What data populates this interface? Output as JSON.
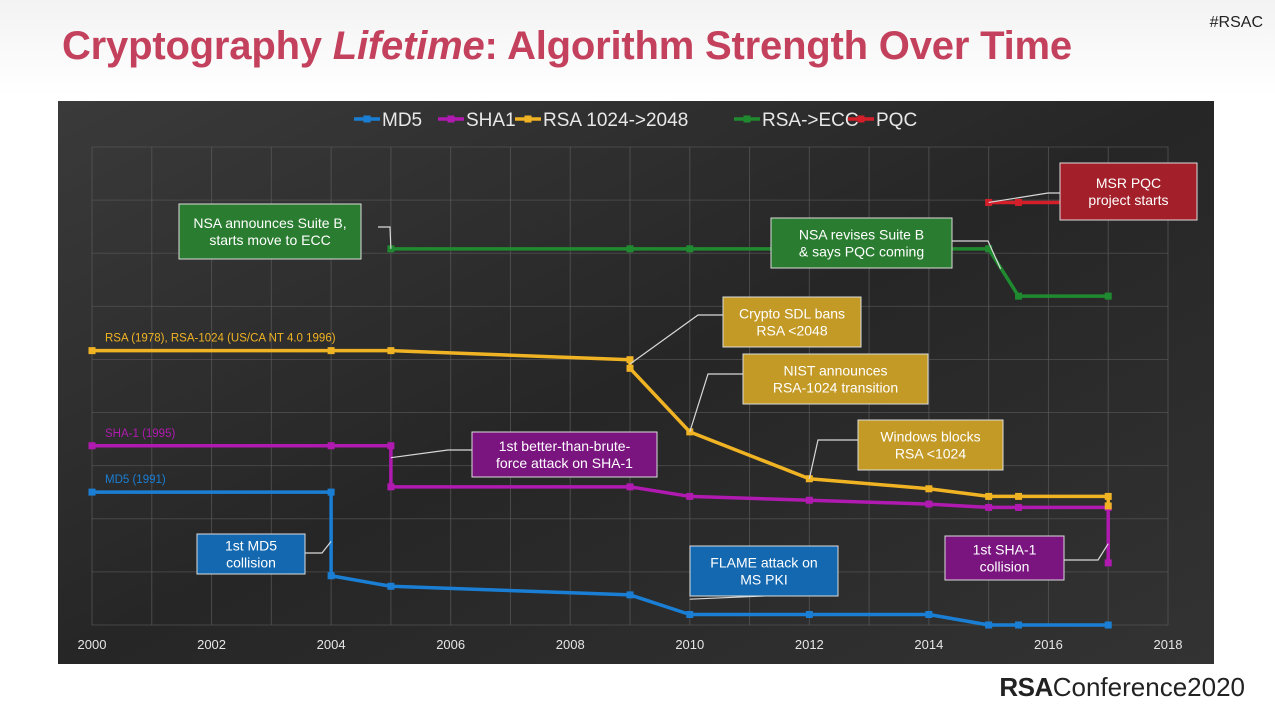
{
  "hashtag": "#RSAC",
  "title": {
    "part1": "Cryptography ",
    "part2": "Lifetime",
    "part3": ": Algorithm Strength Over Time"
  },
  "footer": {
    "brand": "RSA",
    "event": "Conference2020"
  },
  "colors": {
    "title": "#c4415d",
    "md5": "#1a7fd4",
    "sha1": "#b01ab0",
    "rsa": "#f0b323",
    "ecc": "#1f8a2f",
    "pqc": "#d41f2a",
    "box_ecc": "#2a7d30",
    "box_rsa": "#c49a26",
    "box_sha1": "#7a1580",
    "box_md5": "#1468b0",
    "box_pqc": "#a3202a"
  },
  "chart_data": {
    "type": "line",
    "title": "",
    "xlabel": "",
    "ylabel": "",
    "xlim": [
      2000,
      2018
    ],
    "ylim": [
      0,
      100
    ],
    "xticks": [
      "2000",
      "2002",
      "2004",
      "2006",
      "2008",
      "2010",
      "2012",
      "2014",
      "2016",
      "2018"
    ],
    "grid": true,
    "legend_position": "top",
    "series": [
      {
        "name": "MD5",
        "color": "#1a7fd4",
        "points": [
          [
            2000,
            27.8
          ],
          [
            2004,
            27.8
          ],
          [
            2004,
            10.3
          ],
          [
            2005,
            8.1
          ],
          [
            2009,
            6.3
          ],
          [
            2010,
            2.2
          ],
          [
            2012,
            2.2
          ],
          [
            2014,
            2.2
          ],
          [
            2015,
            0
          ],
          [
            2015.5,
            0
          ],
          [
            2017,
            0
          ]
        ]
      },
      {
        "name": "SHA1",
        "color": "#b01ab0",
        "points": [
          [
            2000,
            37.5
          ],
          [
            2004,
            37.5
          ],
          [
            2005,
            37.5
          ],
          [
            2005,
            28.9
          ],
          [
            2009,
            28.9
          ],
          [
            2010,
            26.9
          ],
          [
            2012,
            26.1
          ],
          [
            2014,
            25.3
          ],
          [
            2015,
            24.6
          ],
          [
            2015.5,
            24.6
          ],
          [
            2017,
            24.6
          ],
          [
            2017,
            13.0
          ]
        ]
      },
      {
        "name": "RSA 1024->2048",
        "color": "#f0b323",
        "points": [
          [
            2000,
            57.4
          ],
          [
            2004,
            57.4
          ],
          [
            2005,
            57.4
          ],
          [
            2009,
            55.5
          ],
          [
            2009,
            53.7
          ],
          [
            2010,
            40.4
          ],
          [
            2012,
            30.6
          ],
          [
            2014,
            28.5
          ],
          [
            2015,
            26.9
          ],
          [
            2015.5,
            26.9
          ],
          [
            2017,
            26.9
          ],
          [
            2017,
            24.9
          ]
        ]
      },
      {
        "name": "RSA->ECC",
        "color": "#1f8a2f",
        "points": [
          [
            2005,
            78.7
          ],
          [
            2009,
            78.7
          ],
          [
            2010,
            78.7
          ],
          [
            2012,
            78.7
          ],
          [
            2014,
            78.7
          ],
          [
            2015,
            78.7
          ],
          [
            2015.5,
            68.8
          ],
          [
            2017,
            68.8
          ]
        ]
      },
      {
        "name": "PQC",
        "color": "#d41f2a",
        "points": [
          [
            2015,
            88.4
          ],
          [
            2015.5,
            88.4
          ],
          [
            2017,
            88.4
          ]
        ]
      }
    ],
    "line_labels": [
      {
        "series": "RSA 1024->2048",
        "text": "RSA (1978), RSA-1024 (US/CA NT 4.0 1996)"
      },
      {
        "series": "SHA1",
        "text": "SHA-1 (1995)"
      },
      {
        "series": "MD5",
        "text": "MD5 (1991)"
      }
    ],
    "annotations": [
      {
        "id": "nsa-suite-b",
        "color": "#2a7d30",
        "lines": [
          "NSA announces Suite B,",
          "starts move to ECC"
        ],
        "target": [
          2005,
          78.7
        ]
      },
      {
        "id": "nsa-revises",
        "color": "#2a7d30",
        "lines": [
          "NSA revises Suite B",
          "& says PQC coming"
        ],
        "target": [
          2015.2,
          74.5
        ]
      },
      {
        "id": "msr-pqc",
        "color": "#a3202a",
        "lines": [
          "MSR PQC",
          "project starts"
        ],
        "target": [
          2015,
          88.4
        ]
      },
      {
        "id": "crypto-sdl",
        "color": "#c49a26",
        "lines": [
          "Crypto SDL bans",
          "RSA <2048"
        ],
        "target": [
          2009,
          54.6
        ]
      },
      {
        "id": "nist",
        "color": "#c49a26",
        "lines": [
          "NIST announces",
          "RSA-1024 transition"
        ],
        "target": [
          2010,
          40.4
        ]
      },
      {
        "id": "windows-blocks",
        "color": "#c49a26",
        "lines": [
          "Windows blocks",
          "RSA <1024"
        ],
        "target": [
          2012,
          30.6
        ]
      },
      {
        "id": "sha1-attack",
        "color": "#7a1580",
        "lines": [
          "1st better-than-brute-",
          "force attack on SHA-1"
        ],
        "target": [
          2005,
          35.0
        ]
      },
      {
        "id": "md5-collision",
        "color": "#1468b0",
        "lines": [
          "1st MD5",
          "collision"
        ],
        "target": [
          2004,
          17.5
        ]
      },
      {
        "id": "flame",
        "color": "#1468b0",
        "lines": [
          "FLAME attack on",
          "MS PKI"
        ],
        "target": [
          2010,
          5.4
        ]
      },
      {
        "id": "sha1-collision",
        "color": "#7a1580",
        "lines": [
          "1st SHA-1",
          "collision"
        ],
        "target": [
          2017,
          17.0
        ]
      }
    ]
  }
}
